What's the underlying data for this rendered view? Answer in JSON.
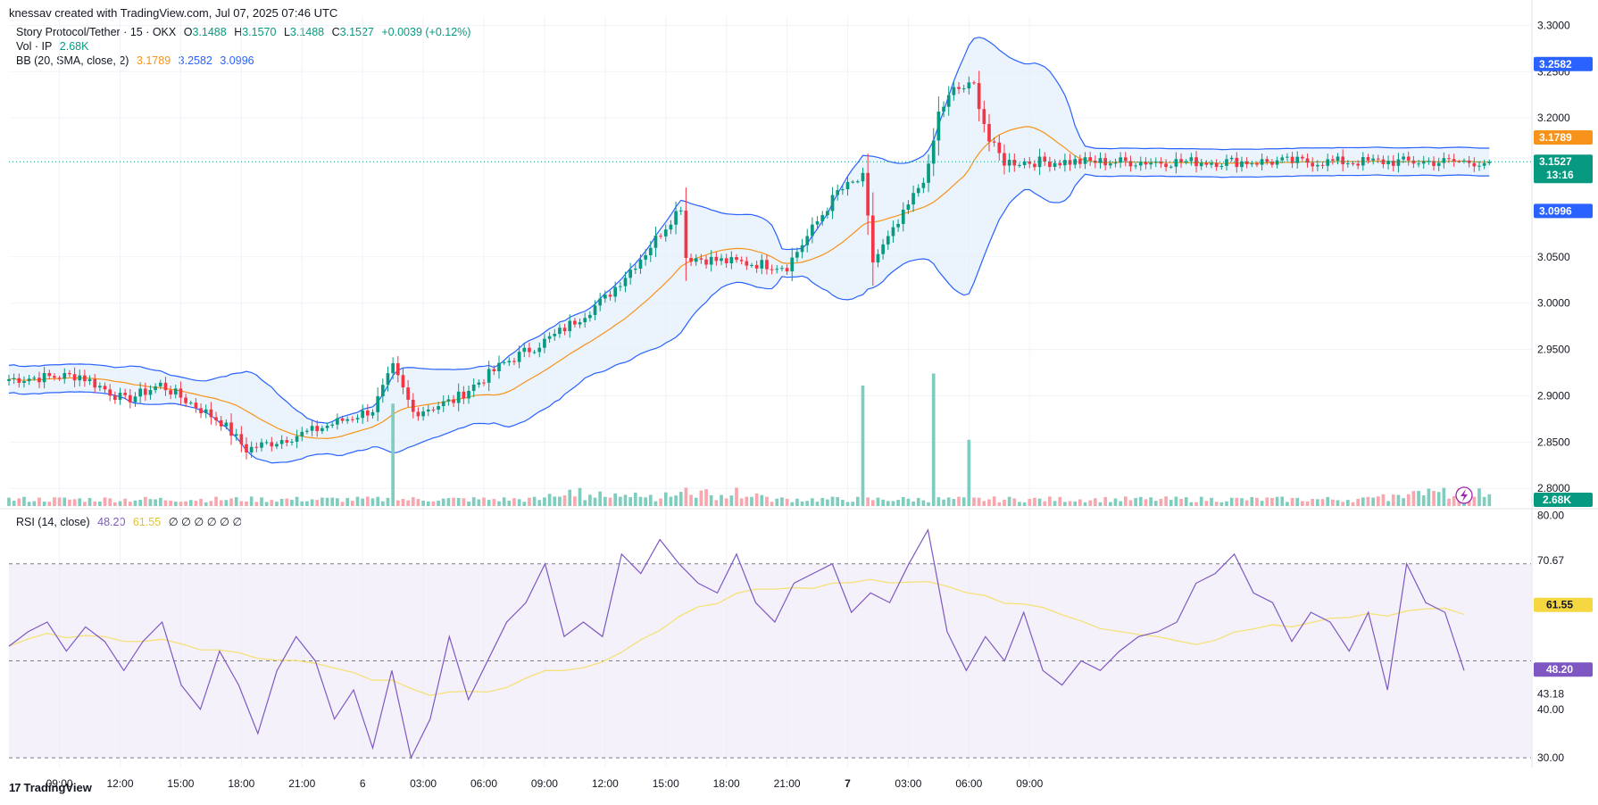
{
  "caption": "knessav created with TradingView.com, Jul 07, 2025 07:46 UTC",
  "legend": {
    "symbol": "Story Protocol/Tether · 15 · OKX",
    "o_label": "O",
    "o_value": "3.1488",
    "h_label": "H",
    "h_value": "3.1570",
    "l_label": "L",
    "l_value": "3.1488",
    "c_label": "C",
    "c_value": "3.1527",
    "change": "+0.0039 (+0.12%)",
    "vol_label": "Vol · IP",
    "vol_value": "2.68K",
    "bb_label": "BB (20, SMA, close, 2)",
    "bb_basis": "3.1789",
    "bb_upper": "3.2582",
    "bb_lower": "3.0996"
  },
  "rsi_legend": {
    "label": "RSI (14, close)",
    "rsi": "48.20",
    "ma": "61.55",
    "placeholders": "∅ ∅ ∅ ∅ ∅ ∅"
  },
  "price_axis": {
    "ticks": [
      "3.3000",
      "3.2500",
      "3.2000",
      "3.0500",
      "3.0000",
      "2.9500",
      "2.9000",
      "2.8500",
      "2.8000"
    ],
    "tick_values": [
      3.3,
      3.25,
      3.2,
      3.05,
      3.0,
      2.95,
      2.9,
      2.85,
      2.8
    ],
    "labels": {
      "upper": "3.2582",
      "basis": "3.1789",
      "last": "3.1527",
      "countdown": "13:16",
      "lower": "3.0996",
      "volume": "2.68K"
    }
  },
  "rsi_axis": {
    "ticks": [
      "80.00",
      "70.67",
      "43.18",
      "40.00",
      "30.00"
    ],
    "tick_values": [
      80,
      70.67,
      43.18,
      40,
      30
    ],
    "labels": {
      "ma": "61.55",
      "rsi": "48.20"
    }
  },
  "time_axis": {
    "labels": [
      "09:00",
      "12:00",
      "15:00",
      "18:00",
      "21:00",
      "6",
      "03:00",
      "06:00",
      "09:00",
      "12:00",
      "15:00",
      "18:00",
      "21:00",
      "7",
      "03:00",
      "06:00",
      "09:00"
    ],
    "bold": [
      false,
      false,
      false,
      false,
      false,
      false,
      false,
      false,
      false,
      false,
      false,
      false,
      false,
      true,
      false,
      false,
      false
    ]
  },
  "colors": {
    "up": "#089981",
    "down": "#f23645",
    "vol_up": "#7fcdbe",
    "vol_down": "#f7a7ad",
    "bb_band": "#2962ff",
    "bb_basis": "#f7931a",
    "bb_fill": "#e3eefb",
    "rsi_line": "#7e57c2",
    "rsi_ma": "#f5e17a",
    "rsi_fill": "#ede7f6",
    "last_price": "#089981"
  },
  "footer": {
    "brand": "TradingView",
    "mark": "17"
  },
  "chart_data": {
    "type": "candlestick",
    "symbol": "Story Protocol/Tether",
    "interval": "15",
    "exchange": "OKX",
    "price_ylim": [
      2.78,
      3.31
    ],
    "rsi_ylim": [
      28,
      81
    ],
    "rsi_levels": [
      70,
      50,
      30
    ],
    "keypoints": [
      {
        "time": "Jul 05 06:30",
        "close": 2.918
      },
      {
        "time": "Jul 05 10:00",
        "close": 2.922
      },
      {
        "time": "Jul 05 12:15",
        "close": 2.895
      },
      {
        "time": "Jul 05 14:00",
        "close": 2.912
      },
      {
        "time": "Jul 05 17:00",
        "close": 2.872
      },
      {
        "time": "Jul 05 18:15",
        "close": 2.842
      },
      {
        "time": "Jul 05 21:30",
        "close": 2.862
      },
      {
        "time": "Jul 06 00:30",
        "close": 2.885
      },
      {
        "time": "Jul 06 01:30",
        "close": 2.93
      },
      {
        "time": "Jul 06 02:30",
        "close": 2.882
      },
      {
        "time": "Jul 06 04:30",
        "close": 2.895
      },
      {
        "time": "Jul 06 07:00",
        "close": 2.935
      },
      {
        "time": "Jul 06 09:30",
        "close": 2.965
      },
      {
        "time": "Jul 06 12:00",
        "close": 3.005
      },
      {
        "time": "Jul 06 14:00",
        "close": 3.055
      },
      {
        "time": "Jul 06 15:45",
        "close": 3.105
      },
      {
        "time": "Jul 06 16:00",
        "close": 3.05
      },
      {
        "time": "Jul 06 18:00",
        "close": 3.045
      },
      {
        "time": "Jul 06 21:00",
        "close": 3.04
      },
      {
        "time": "Jul 06 23:30",
        "close": 3.12
      },
      {
        "time": "Jul 07 00:45",
        "close": 3.135
      },
      {
        "time": "Jul 07 01:15",
        "close": 3.045
      },
      {
        "time": "Jul 07 02:30",
        "close": 3.085
      },
      {
        "time": "Jul 07 04:00",
        "close": 3.145
      },
      {
        "time": "Jul 07 04:30",
        "close": 3.205
      },
      {
        "time": "Jul 07 05:15",
        "close": 3.23
      },
      {
        "time": "Jul 07 06:15",
        "close": 3.235
      },
      {
        "time": "Jul 07 07:00",
        "close": 3.175
      },
      {
        "time": "Jul 07 07:45",
        "close": 3.1527
      }
    ],
    "volume_spikes": [
      {
        "time": "Jul 06 01:30",
        "volume_relative": 0.85
      },
      {
        "time": "Jul 07 00:45",
        "volume_relative": 1.0
      },
      {
        "time": "Jul 07 04:15",
        "volume_relative": 1.1
      },
      {
        "time": "Jul 07 06:00",
        "volume_relative": 0.55
      }
    ],
    "rsi_points": [
      53,
      56,
      58,
      52,
      57,
      54,
      48,
      54,
      58,
      45,
      40,
      52,
      45,
      35,
      48,
      55,
      50,
      38,
      44,
      32,
      48,
      30,
      38,
      55,
      42,
      50,
      58,
      62,
      70,
      55,
      58,
      55,
      72,
      68,
      75,
      70,
      66,
      64,
      72,
      62,
      58,
      66,
      68,
      70,
      60,
      64,
      62,
      70,
      77,
      56,
      48,
      55,
      50,
      60,
      48,
      45,
      50,
      48,
      52,
      55,
      56,
      58,
      66,
      68,
      72,
      64,
      62,
      54,
      60,
      58,
      52,
      60,
      44,
      70,
      62,
      60,
      48
    ]
  }
}
